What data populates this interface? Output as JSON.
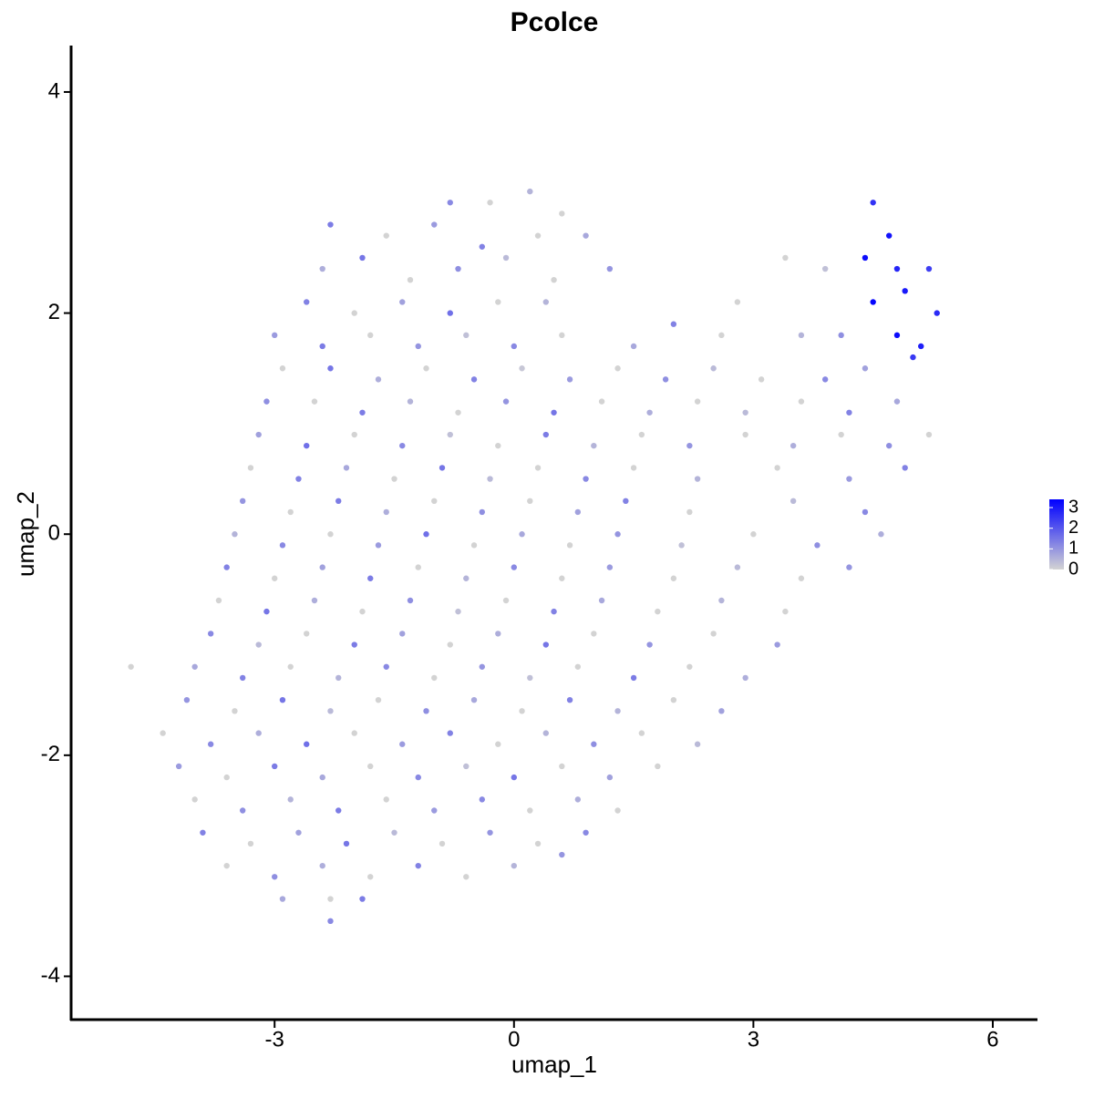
{
  "chart_data": {
    "type": "scatter",
    "title": "Pcolce",
    "x_label": "umap_1",
    "y_label": "umap_2",
    "xlim": [
      -5.55,
      6.56
    ],
    "ylim": [
      -4.4,
      4.42
    ],
    "xticks": [
      -3,
      0,
      3,
      6
    ],
    "yticks": [
      -4,
      -2,
      0,
      2,
      4
    ],
    "colorbar": {
      "lim": [
        0,
        3.4
      ],
      "ticks": [
        0,
        1,
        2,
        3
      ],
      "low": "#d3d3d3",
      "high": "#0000ff"
    },
    "points": [
      {
        "x": -0.8,
        "y": 3.0,
        "value": 1.2
      },
      {
        "x": -0.3,
        "y": 3.0,
        "value": 0
      },
      {
        "x": 0.2,
        "y": 3.1,
        "value": 0.5
      },
      {
        "x": 0.6,
        "y": 2.9,
        "value": 0
      },
      {
        "x": -2.3,
        "y": 2.8,
        "value": 1.4
      },
      {
        "x": -1.6,
        "y": 2.7,
        "value": 0
      },
      {
        "x": -1.0,
        "y": 2.8,
        "value": 0.9
      },
      {
        "x": -0.4,
        "y": 2.6,
        "value": 1.3
      },
      {
        "x": 0.3,
        "y": 2.7,
        "value": 0
      },
      {
        "x": 0.9,
        "y": 2.7,
        "value": 0.7
      },
      {
        "x": 4.5,
        "y": 3.0,
        "value": 2.6
      },
      {
        "x": 4.7,
        "y": 2.7,
        "value": 3.1
      },
      {
        "x": -2.4,
        "y": 2.4,
        "value": 0.6
      },
      {
        "x": -1.9,
        "y": 2.5,
        "value": 1.5
      },
      {
        "x": -1.3,
        "y": 2.3,
        "value": 0
      },
      {
        "x": -0.7,
        "y": 2.4,
        "value": 1.1
      },
      {
        "x": -0.1,
        "y": 2.5,
        "value": 0.4
      },
      {
        "x": 0.5,
        "y": 2.3,
        "value": 0
      },
      {
        "x": 1.2,
        "y": 2.4,
        "value": 1.0
      },
      {
        "x": 3.4,
        "y": 2.5,
        "value": 0
      },
      {
        "x": 3.9,
        "y": 2.4,
        "value": 0.3
      },
      {
        "x": 4.4,
        "y": 2.5,
        "value": 3.2
      },
      {
        "x": 4.8,
        "y": 2.4,
        "value": 2.8
      },
      {
        "x": 5.2,
        "y": 2.4,
        "value": 2.4
      },
      {
        "x": -2.6,
        "y": 2.1,
        "value": 1.3
      },
      {
        "x": -2.0,
        "y": 2.0,
        "value": 0
      },
      {
        "x": -1.4,
        "y": 2.1,
        "value": 0.8
      },
      {
        "x": -0.8,
        "y": 2.0,
        "value": 1.6
      },
      {
        "x": -0.2,
        "y": 2.1,
        "value": 0
      },
      {
        "x": 0.4,
        "y": 2.1,
        "value": 0.5
      },
      {
        "x": 2.8,
        "y": 2.1,
        "value": 0
      },
      {
        "x": 4.5,
        "y": 2.1,
        "value": 3.3
      },
      {
        "x": 4.9,
        "y": 2.2,
        "value": 3.0
      },
      {
        "x": 5.3,
        "y": 2.0,
        "value": 2.7
      },
      {
        "x": -3.0,
        "y": 1.8,
        "value": 0.9
      },
      {
        "x": -2.4,
        "y": 1.7,
        "value": 1.4
      },
      {
        "x": -1.8,
        "y": 1.8,
        "value": 0
      },
      {
        "x": -1.2,
        "y": 1.7,
        "value": 1.0
      },
      {
        "x": -0.6,
        "y": 1.8,
        "value": 0.3
      },
      {
        "x": 0.0,
        "y": 1.7,
        "value": 1.2
      },
      {
        "x": 0.6,
        "y": 1.8,
        "value": 0
      },
      {
        "x": 1.5,
        "y": 1.7,
        "value": 0.7
      },
      {
        "x": 2.0,
        "y": 1.9,
        "value": 1.3
      },
      {
        "x": 2.6,
        "y": 1.8,
        "value": 0
      },
      {
        "x": 3.6,
        "y": 1.8,
        "value": 0.5
      },
      {
        "x": 4.1,
        "y": 1.8,
        "value": 1.1
      },
      {
        "x": 4.8,
        "y": 1.8,
        "value": 3.2
      },
      {
        "x": 5.1,
        "y": 1.7,
        "value": 2.9
      },
      {
        "x": -2.9,
        "y": 1.5,
        "value": 0
      },
      {
        "x": -2.3,
        "y": 1.5,
        "value": 1.5
      },
      {
        "x": -1.7,
        "y": 1.4,
        "value": 0.6
      },
      {
        "x": -1.1,
        "y": 1.5,
        "value": 0
      },
      {
        "x": -0.5,
        "y": 1.4,
        "value": 1.3
      },
      {
        "x": 0.1,
        "y": 1.5,
        "value": 0.2
      },
      {
        "x": 0.7,
        "y": 1.4,
        "value": 0.9
      },
      {
        "x": 1.3,
        "y": 1.5,
        "value": 0
      },
      {
        "x": 1.9,
        "y": 1.4,
        "value": 1.1
      },
      {
        "x": 2.5,
        "y": 1.5,
        "value": 0.4
      },
      {
        "x": 3.1,
        "y": 1.4,
        "value": 0
      },
      {
        "x": 3.9,
        "y": 1.4,
        "value": 1.2
      },
      {
        "x": 4.4,
        "y": 1.5,
        "value": 0.8
      },
      {
        "x": 5.0,
        "y": 1.6,
        "value": 2.5
      },
      {
        "x": -3.1,
        "y": 1.2,
        "value": 1.1
      },
      {
        "x": -2.5,
        "y": 1.2,
        "value": 0
      },
      {
        "x": -1.9,
        "y": 1.1,
        "value": 1.4
      },
      {
        "x": -1.3,
        "y": 1.2,
        "value": 0.5
      },
      {
        "x": -0.7,
        "y": 1.1,
        "value": 0
      },
      {
        "x": -0.1,
        "y": 1.2,
        "value": 1.0
      },
      {
        "x": 0.5,
        "y": 1.1,
        "value": 1.5
      },
      {
        "x": 1.1,
        "y": 1.2,
        "value": 0
      },
      {
        "x": 1.7,
        "y": 1.1,
        "value": 0.6
      },
      {
        "x": 2.3,
        "y": 1.2,
        "value": 0
      },
      {
        "x": 2.9,
        "y": 1.1,
        "value": 0.4
      },
      {
        "x": 3.6,
        "y": 1.2,
        "value": 0
      },
      {
        "x": 4.2,
        "y": 1.1,
        "value": 1.3
      },
      {
        "x": 4.8,
        "y": 1.2,
        "value": 0.7
      },
      {
        "x": -3.2,
        "y": 0.9,
        "value": 0.8
      },
      {
        "x": -2.6,
        "y": 0.8,
        "value": 1.6
      },
      {
        "x": -2.0,
        "y": 0.9,
        "value": 0
      },
      {
        "x": -1.4,
        "y": 0.8,
        "value": 1.2
      },
      {
        "x": -0.8,
        "y": 0.9,
        "value": 0.3
      },
      {
        "x": -0.2,
        "y": 0.8,
        "value": 0
      },
      {
        "x": 0.4,
        "y": 0.9,
        "value": 1.4
      },
      {
        "x": 1.0,
        "y": 0.8,
        "value": 0.5
      },
      {
        "x": 1.6,
        "y": 0.9,
        "value": 0
      },
      {
        "x": 2.2,
        "y": 0.8,
        "value": 1.0
      },
      {
        "x": 2.9,
        "y": 0.9,
        "value": 0
      },
      {
        "x": 3.5,
        "y": 0.8,
        "value": 0.6
      },
      {
        "x": 4.1,
        "y": 0.9,
        "value": 0
      },
      {
        "x": 4.7,
        "y": 0.8,
        "value": 1.1
      },
      {
        "x": 5.2,
        "y": 0.9,
        "value": 0
      },
      {
        "x": -3.3,
        "y": 0.6,
        "value": 0
      },
      {
        "x": -2.7,
        "y": 0.5,
        "value": 1.3
      },
      {
        "x": -2.1,
        "y": 0.6,
        "value": 0.7
      },
      {
        "x": -1.5,
        "y": 0.5,
        "value": 0
      },
      {
        "x": -0.9,
        "y": 0.6,
        "value": 1.5
      },
      {
        "x": -0.3,
        "y": 0.5,
        "value": 0.4
      },
      {
        "x": 0.3,
        "y": 0.6,
        "value": 0
      },
      {
        "x": 0.9,
        "y": 0.5,
        "value": 1.2
      },
      {
        "x": 1.5,
        "y": 0.6,
        "value": 0
      },
      {
        "x": 2.3,
        "y": 0.5,
        "value": 0.5
      },
      {
        "x": 3.3,
        "y": 0.6,
        "value": 0
      },
      {
        "x": 4.2,
        "y": 0.5,
        "value": 0.9
      },
      {
        "x": 4.9,
        "y": 0.6,
        "value": 1.3
      },
      {
        "x": -3.4,
        "y": 0.3,
        "value": 1.0
      },
      {
        "x": -2.8,
        "y": 0.2,
        "value": 0
      },
      {
        "x": -2.2,
        "y": 0.3,
        "value": 1.4
      },
      {
        "x": -1.6,
        "y": 0.2,
        "value": 0.6
      },
      {
        "x": -1.0,
        "y": 0.3,
        "value": 0
      },
      {
        "x": -0.4,
        "y": 0.2,
        "value": 1.1
      },
      {
        "x": 0.2,
        "y": 0.3,
        "value": 0
      },
      {
        "x": 0.8,
        "y": 0.2,
        "value": 0.8
      },
      {
        "x": 1.4,
        "y": 0.3,
        "value": 1.3
      },
      {
        "x": 2.2,
        "y": 0.2,
        "value": 0
      },
      {
        "x": 3.5,
        "y": 0.3,
        "value": 0.4
      },
      {
        "x": 4.4,
        "y": 0.2,
        "value": 1.2
      },
      {
        "x": -3.5,
        "y": 0.0,
        "value": 0.5
      },
      {
        "x": -2.9,
        "y": -0.1,
        "value": 1.2
      },
      {
        "x": -2.3,
        "y": 0.0,
        "value": 0
      },
      {
        "x": -1.7,
        "y": -0.1,
        "value": 0.9
      },
      {
        "x": -1.1,
        "y": 0.0,
        "value": 1.6
      },
      {
        "x": -0.5,
        "y": -0.1,
        "value": 0
      },
      {
        "x": 0.1,
        "y": 0.0,
        "value": 0.7
      },
      {
        "x": 0.7,
        "y": -0.1,
        "value": 0
      },
      {
        "x": 1.3,
        "y": 0.0,
        "value": 1.0
      },
      {
        "x": 2.1,
        "y": -0.1,
        "value": 0.3
      },
      {
        "x": 3.0,
        "y": 0.0,
        "value": 0
      },
      {
        "x": 3.8,
        "y": -0.1,
        "value": 1.1
      },
      {
        "x": 4.6,
        "y": 0.0,
        "value": 0.6
      },
      {
        "x": -3.6,
        "y": -0.3,
        "value": 1.3
      },
      {
        "x": -3.0,
        "y": -0.4,
        "value": 0
      },
      {
        "x": -2.4,
        "y": -0.3,
        "value": 0.8
      },
      {
        "x": -1.8,
        "y": -0.4,
        "value": 1.4
      },
      {
        "x": -1.2,
        "y": -0.3,
        "value": 0
      },
      {
        "x": -0.6,
        "y": -0.4,
        "value": 0.5
      },
      {
        "x": 0.0,
        "y": -0.3,
        "value": 1.2
      },
      {
        "x": 0.6,
        "y": -0.4,
        "value": 0
      },
      {
        "x": 1.2,
        "y": -0.3,
        "value": 0.9
      },
      {
        "x": 2.0,
        "y": -0.4,
        "value": 0
      },
      {
        "x": 2.8,
        "y": -0.3,
        "value": 0.4
      },
      {
        "x": 3.6,
        "y": -0.4,
        "value": 0
      },
      {
        "x": 4.2,
        "y": -0.3,
        "value": 1.0
      },
      {
        "x": -3.7,
        "y": -0.6,
        "value": 0
      },
      {
        "x": -3.1,
        "y": -0.7,
        "value": 1.5
      },
      {
        "x": -2.5,
        "y": -0.6,
        "value": 0.6
      },
      {
        "x": -1.9,
        "y": -0.7,
        "value": 0
      },
      {
        "x": -1.3,
        "y": -0.6,
        "value": 1.1
      },
      {
        "x": -0.7,
        "y": -0.7,
        "value": 0.3
      },
      {
        "x": -0.1,
        "y": -0.6,
        "value": 0
      },
      {
        "x": 0.5,
        "y": -0.7,
        "value": 1.3
      },
      {
        "x": 1.1,
        "y": -0.6,
        "value": 0.7
      },
      {
        "x": 1.8,
        "y": -0.7,
        "value": 0
      },
      {
        "x": 2.6,
        "y": -0.6,
        "value": 0.5
      },
      {
        "x": 3.4,
        "y": -0.7,
        "value": 0
      },
      {
        "x": -3.8,
        "y": -0.9,
        "value": 1.2
      },
      {
        "x": -3.2,
        "y": -1.0,
        "value": 0.4
      },
      {
        "x": -2.6,
        "y": -0.9,
        "value": 0
      },
      {
        "x": -2.0,
        "y": -1.0,
        "value": 1.4
      },
      {
        "x": -1.4,
        "y": -0.9,
        "value": 0.8
      },
      {
        "x": -0.8,
        "y": -1.0,
        "value": 0
      },
      {
        "x": -0.2,
        "y": -0.9,
        "value": 0.6
      },
      {
        "x": 0.4,
        "y": -1.0,
        "value": 1.5
      },
      {
        "x": 1.0,
        "y": -0.9,
        "value": 0
      },
      {
        "x": 1.7,
        "y": -1.0,
        "value": 1.0
      },
      {
        "x": 2.5,
        "y": -0.9,
        "value": 0
      },
      {
        "x": 3.3,
        "y": -1.0,
        "value": 0.9
      },
      {
        "x": -4.8,
        "y": -1.2,
        "value": 0
      },
      {
        "x": -4.0,
        "y": -1.2,
        "value": 0.7
      },
      {
        "x": -3.4,
        "y": -1.3,
        "value": 1.3
      },
      {
        "x": -2.8,
        "y": -1.2,
        "value": 0
      },
      {
        "x": -2.2,
        "y": -1.3,
        "value": 0.5
      },
      {
        "x": -1.6,
        "y": -1.2,
        "value": 1.2
      },
      {
        "x": -1.0,
        "y": -1.3,
        "value": 0
      },
      {
        "x": -0.4,
        "y": -1.2,
        "value": 1.0
      },
      {
        "x": 0.2,
        "y": -1.3,
        "value": 0.3
      },
      {
        "x": 0.8,
        "y": -1.2,
        "value": 0
      },
      {
        "x": 1.5,
        "y": -1.3,
        "value": 1.4
      },
      {
        "x": 2.2,
        "y": -1.2,
        "value": 0
      },
      {
        "x": 2.9,
        "y": -1.3,
        "value": 0.6
      },
      {
        "x": -4.1,
        "y": -1.5,
        "value": 1.0
      },
      {
        "x": -3.5,
        "y": -1.6,
        "value": 0
      },
      {
        "x": -2.9,
        "y": -1.5,
        "value": 1.5
      },
      {
        "x": -2.3,
        "y": -1.6,
        "value": 0.4
      },
      {
        "x": -1.7,
        "y": -1.5,
        "value": 0
      },
      {
        "x": -1.1,
        "y": -1.6,
        "value": 1.1
      },
      {
        "x": -0.5,
        "y": -1.5,
        "value": 0.7
      },
      {
        "x": 0.1,
        "y": -1.6,
        "value": 0
      },
      {
        "x": 0.7,
        "y": -1.5,
        "value": 1.3
      },
      {
        "x": 1.3,
        "y": -1.6,
        "value": 0.5
      },
      {
        "x": 2.0,
        "y": -1.5,
        "value": 0
      },
      {
        "x": 2.6,
        "y": -1.6,
        "value": 0.8
      },
      {
        "x": -4.4,
        "y": -1.8,
        "value": 0
      },
      {
        "x": -3.8,
        "y": -1.9,
        "value": 1.2
      },
      {
        "x": -3.2,
        "y": -1.8,
        "value": 0.6
      },
      {
        "x": -2.6,
        "y": -1.9,
        "value": 1.6
      },
      {
        "x": -2.0,
        "y": -1.8,
        "value": 0
      },
      {
        "x": -1.4,
        "y": -1.9,
        "value": 0.9
      },
      {
        "x": -0.8,
        "y": -1.8,
        "value": 1.3
      },
      {
        "x": -0.2,
        "y": -1.9,
        "value": 0
      },
      {
        "x": 0.4,
        "y": -1.8,
        "value": 0.5
      },
      {
        "x": 1.0,
        "y": -1.9,
        "value": 1.1
      },
      {
        "x": 1.6,
        "y": -1.8,
        "value": 0
      },
      {
        "x": 2.3,
        "y": -1.9,
        "value": 0.4
      },
      {
        "x": -4.2,
        "y": -2.1,
        "value": 0.9
      },
      {
        "x": -3.6,
        "y": -2.2,
        "value": 0
      },
      {
        "x": -3.0,
        "y": -2.1,
        "value": 1.4
      },
      {
        "x": -2.4,
        "y": -2.2,
        "value": 0.7
      },
      {
        "x": -1.8,
        "y": -2.1,
        "value": 0
      },
      {
        "x": -1.2,
        "y": -2.2,
        "value": 1.2
      },
      {
        "x": -0.6,
        "y": -2.1,
        "value": 0.3
      },
      {
        "x": 0.0,
        "y": -2.2,
        "value": 1.5
      },
      {
        "x": 0.6,
        "y": -2.1,
        "value": 0
      },
      {
        "x": 1.2,
        "y": -2.2,
        "value": 0.8
      },
      {
        "x": 1.8,
        "y": -2.1,
        "value": 0
      },
      {
        "x": -4.0,
        "y": -2.4,
        "value": 0
      },
      {
        "x": -3.4,
        "y": -2.5,
        "value": 1.1
      },
      {
        "x": -2.8,
        "y": -2.4,
        "value": 0.5
      },
      {
        "x": -2.2,
        "y": -2.5,
        "value": 1.4
      },
      {
        "x": -1.6,
        "y": -2.4,
        "value": 0
      },
      {
        "x": -1.0,
        "y": -2.5,
        "value": 0.9
      },
      {
        "x": -0.4,
        "y": -2.4,
        "value": 1.2
      },
      {
        "x": 0.2,
        "y": -2.5,
        "value": 0
      },
      {
        "x": 0.8,
        "y": -2.4,
        "value": 0.6
      },
      {
        "x": 1.3,
        "y": -2.5,
        "value": 0
      },
      {
        "x": -3.9,
        "y": -2.7,
        "value": 1.3
      },
      {
        "x": -3.3,
        "y": -2.8,
        "value": 0
      },
      {
        "x": -2.7,
        "y": -2.7,
        "value": 0.8
      },
      {
        "x": -2.1,
        "y": -2.8,
        "value": 1.5
      },
      {
        "x": -1.5,
        "y": -2.7,
        "value": 0.4
      },
      {
        "x": -0.9,
        "y": -2.8,
        "value": 0
      },
      {
        "x": -0.3,
        "y": -2.7,
        "value": 1.0
      },
      {
        "x": 0.3,
        "y": -2.8,
        "value": 0
      },
      {
        "x": 0.9,
        "y": -2.7,
        "value": 1.2
      },
      {
        "x": -3.6,
        "y": -3.0,
        "value": 0
      },
      {
        "x": -3.0,
        "y": -3.1,
        "value": 1.1
      },
      {
        "x": -2.4,
        "y": -3.0,
        "value": 0.6
      },
      {
        "x": -1.8,
        "y": -3.1,
        "value": 0
      },
      {
        "x": -1.2,
        "y": -3.0,
        "value": 1.3
      },
      {
        "x": -0.6,
        "y": -3.1,
        "value": 0
      },
      {
        "x": 0.0,
        "y": -3.0,
        "value": 0.5
      },
      {
        "x": 0.6,
        "y": -2.9,
        "value": 1.0
      },
      {
        "x": -2.9,
        "y": -3.3,
        "value": 0.7
      },
      {
        "x": -2.3,
        "y": -3.3,
        "value": 0
      },
      {
        "x": -1.9,
        "y": -3.3,
        "value": 1.4
      },
      {
        "x": -2.3,
        "y": -3.5,
        "value": 1.2
      }
    ]
  }
}
